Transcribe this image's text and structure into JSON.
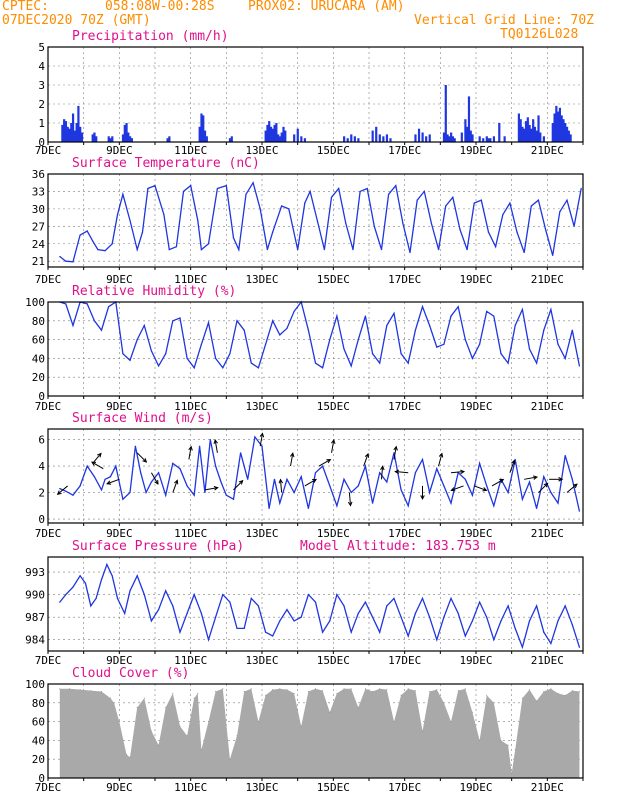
{
  "header": {
    "source": "CPTEC:",
    "coords": "058:08W-00:28S",
    "station": "PROX02: URUCARA (AM)",
    "run": "07DEC2020 70Z (GMT)",
    "grid_note": "Vertical Grid Line: 70Z",
    "code": "TQ0126L028"
  },
  "colors": {
    "header": "#ff8c00",
    "title": "#e0108c",
    "series": "#1f36e0",
    "cloud": "#a9a9a9",
    "grid": "#808080"
  },
  "x_axis": {
    "tick_labels": [
      "7DEC",
      "9DEC",
      "11DEC",
      "13DEC",
      "15DEC",
      "17DEC",
      "19DEC",
      "21DEC"
    ],
    "start_day": 7,
    "end_day": 22,
    "day_fraction_start": 0.333
  },
  "chart_data": [
    {
      "id": "precip",
      "type": "bar",
      "title": "Precipitation (mm/h)",
      "ylim": [
        0,
        5
      ],
      "yticks": [
        "0",
        "1",
        "2",
        "3",
        "4",
        "5"
      ],
      "ytick_values": [
        0,
        1,
        2,
        3,
        4,
        5
      ],
      "x": [
        7.4,
        7.45,
        7.5,
        7.55,
        7.6,
        7.65,
        7.7,
        7.75,
        7.8,
        7.85,
        7.9,
        7.95,
        8.25,
        8.3,
        8.35,
        8.7,
        8.75,
        8.8,
        9.1,
        9.15,
        9.2,
        9.25,
        9.3,
        9.35,
        10.35,
        10.4,
        11.25,
        11.3,
        11.35,
        11.4,
        11.45,
        12.1,
        12.15,
        13.1,
        13.15,
        13.2,
        13.25,
        13.3,
        13.35,
        13.4,
        13.45,
        13.5,
        13.55,
        13.6,
        13.65,
        13.9,
        14.0,
        14.1,
        14.2,
        15.3,
        15.4,
        15.5,
        15.6,
        15.7,
        16.1,
        16.2,
        16.3,
        16.4,
        16.5,
        16.6,
        17.3,
        17.4,
        17.5,
        17.6,
        17.7,
        18.1,
        18.15,
        18.2,
        18.25,
        18.3,
        18.35,
        18.4,
        18.6,
        18.7,
        18.75,
        18.8,
        18.85,
        18.9,
        19.1,
        19.2,
        19.3,
        19.35,
        19.4,
        19.5,
        19.65,
        19.8,
        20.2,
        20.25,
        20.3,
        20.35,
        20.4,
        20.45,
        20.5,
        20.55,
        20.6,
        20.65,
        20.7,
        20.75,
        20.8,
        20.9,
        21.15,
        21.2,
        21.25,
        21.3,
        21.35,
        21.4,
        21.45,
        21.5,
        21.55,
        21.6,
        21.65
      ],
      "values": [
        0.9,
        1.2,
        1.1,
        0.8,
        0.7,
        1.0,
        1.5,
        0.6,
        1.0,
        1.9,
        0.8,
        0.5,
        0.4,
        0.5,
        0.3,
        0.3,
        0.2,
        0.3,
        0.4,
        0.9,
        1.0,
        0.5,
        0.3,
        0.2,
        0.2,
        0.3,
        0.8,
        1.5,
        1.4,
        0.6,
        0.3,
        0.2,
        0.3,
        0.6,
        0.9,
        1.1,
        0.8,
        0.7,
        0.9,
        1.0,
        0.4,
        0.3,
        0.5,
        0.8,
        0.6,
        0.4,
        0.7,
        0.3,
        0.2,
        0.3,
        0.2,
        0.4,
        0.3,
        0.2,
        0.6,
        0.8,
        0.4,
        0.3,
        0.4,
        0.2,
        0.4,
        0.7,
        0.5,
        0.3,
        0.4,
        0.5,
        3.0,
        0.4,
        0.3,
        0.5,
        0.3,
        0.2,
        0.5,
        1.2,
        0.8,
        2.4,
        0.6,
        0.4,
        0.3,
        0.2,
        0.3,
        0.2,
        0.2,
        0.3,
        1.0,
        0.3,
        1.5,
        1.2,
        0.8,
        0.7,
        1.1,
        1.3,
        0.9,
        0.7,
        1.2,
        0.8,
        0.6,
        1.4,
        0.5,
        0.3,
        1.0,
        1.5,
        1.9,
        1.6,
        1.8,
        1.4,
        1.2,
        1.0,
        0.8,
        0.6,
        0.4
      ]
    },
    {
      "id": "temp",
      "type": "line",
      "title": "Surface Temperature (nC)",
      "ylim": [
        20,
        36
      ],
      "yticks": [
        "21",
        "24",
        "27",
        "30",
        "33",
        "36"
      ],
      "ytick_values": [
        21,
        24,
        27,
        30,
        33,
        36
      ],
      "x": [
        7.33,
        7.5,
        7.7,
        7.9,
        8.1,
        8.25,
        8.4,
        8.6,
        8.8,
        8.95,
        9.1,
        9.3,
        9.5,
        9.65,
        9.8,
        10.0,
        10.25,
        10.4,
        10.6,
        10.8,
        11.0,
        11.2,
        11.3,
        11.5,
        11.75,
        12.0,
        12.2,
        12.35,
        12.55,
        12.75,
        12.95,
        13.15,
        13.3,
        13.55,
        13.75,
        14.0,
        14.2,
        14.35,
        14.55,
        14.75,
        14.95,
        15.15,
        15.35,
        15.55,
        15.75,
        15.95,
        16.15,
        16.35,
        16.55,
        16.75,
        16.95,
        17.15,
        17.35,
        17.55,
        17.75,
        17.95,
        18.15,
        18.35,
        18.55,
        18.75,
        18.95,
        19.15,
        19.35,
        19.55,
        19.75,
        19.95,
        20.15,
        20.35,
        20.55,
        20.75,
        20.95,
        21.15,
        21.35,
        21.55,
        21.75,
        21.95
      ],
      "values": [
        21.8,
        21.0,
        20.9,
        25.5,
        26.2,
        24.5,
        23.0,
        22.8,
        24.0,
        29.0,
        32.5,
        28.0,
        23.0,
        26.0,
        33.5,
        34.0,
        29.0,
        23.0,
        23.5,
        33.0,
        34.0,
        28.0,
        23.0,
        24.0,
        33.5,
        34.0,
        25.0,
        23.0,
        32.5,
        34.5,
        30.0,
        23.0,
        26.0,
        30.5,
        30.0,
        23.0,
        31.0,
        33.0,
        28.0,
        23.0,
        32.0,
        33.5,
        27.5,
        23.0,
        33.0,
        33.5,
        27.0,
        23.0,
        32.5,
        34.0,
        27.5,
        22.5,
        31.5,
        33.0,
        27.5,
        23.0,
        30.5,
        32.0,
        26.5,
        23.0,
        31.0,
        31.5,
        26.0,
        23.5,
        29.0,
        31.0,
        26.0,
        22.5,
        30.5,
        31.5,
        26.5,
        22.0,
        29.5,
        31.5,
        27.0,
        33.5
      ]
    },
    {
      "id": "rh",
      "type": "line",
      "title": "Relative Humidity (%)",
      "ylim": [
        0,
        100
      ],
      "yticks": [
        "0",
        "20",
        "40",
        "60",
        "80",
        "100"
      ],
      "ytick_values": [
        0,
        20,
        40,
        60,
        80,
        100
      ],
      "x": [
        7.33,
        7.5,
        7.7,
        7.9,
        8.1,
        8.3,
        8.5,
        8.7,
        8.9,
        9.1,
        9.3,
        9.5,
        9.7,
        9.9,
        10.1,
        10.3,
        10.5,
        10.7,
        10.9,
        11.1,
        11.3,
        11.5,
        11.7,
        11.9,
        12.1,
        12.3,
        12.5,
        12.7,
        12.9,
        13.1,
        13.3,
        13.5,
        13.7,
        13.9,
        14.1,
        14.3,
        14.5,
        14.7,
        14.9,
        15.1,
        15.3,
        15.5,
        15.7,
        15.9,
        16.1,
        16.3,
        16.5,
        16.7,
        16.9,
        17.1,
        17.3,
        17.5,
        17.7,
        17.9,
        18.1,
        18.3,
        18.5,
        18.7,
        18.9,
        19.1,
        19.3,
        19.5,
        19.7,
        19.9,
        20.1,
        20.3,
        20.5,
        20.7,
        20.9,
        21.1,
        21.3,
        21.5,
        21.7,
        21.9
      ],
      "values": [
        100,
        98,
        75,
        100,
        98,
        80,
        70,
        95,
        100,
        45,
        38,
        60,
        75,
        48,
        32,
        45,
        80,
        83,
        40,
        30,
        55,
        78,
        40,
        30,
        45,
        80,
        70,
        35,
        30,
        55,
        80,
        65,
        72,
        90,
        100,
        70,
        35,
        30,
        60,
        85,
        50,
        32,
        60,
        85,
        45,
        35,
        75,
        88,
        45,
        35,
        70,
        95,
        75,
        52,
        55,
        85,
        95,
        60,
        40,
        55,
        90,
        85,
        45,
        35,
        75,
        92,
        50,
        35,
        70,
        92,
        55,
        40,
        70,
        32
      ]
    },
    {
      "id": "wind",
      "type": "line",
      "title": "Surface Wind (m/s)",
      "ylim": [
        -0.3,
        6.8
      ],
      "yticks": [
        "0",
        "2",
        "4",
        "6"
      ],
      "ytick_values": [
        0,
        2,
        4,
        6
      ],
      "x": [
        7.33,
        7.5,
        7.7,
        7.9,
        8.1,
        8.3,
        8.5,
        8.6,
        8.75,
        8.9,
        9.1,
        9.3,
        9.45,
        9.6,
        9.75,
        9.9,
        10.1,
        10.3,
        10.5,
        10.7,
        10.9,
        11.1,
        11.25,
        11.4,
        11.55,
        11.7,
        11.85,
        12.0,
        12.2,
        12.4,
        12.6,
        12.8,
        13.0,
        13.2,
        13.35,
        13.5,
        13.7,
        13.9,
        14.1,
        14.3,
        14.5,
        14.7,
        14.9,
        15.1,
        15.3,
        15.5,
        15.7,
        15.9,
        16.1,
        16.3,
        16.5,
        16.7,
        16.9,
        17.1,
        17.3,
        17.5,
        17.7,
        17.9,
        18.1,
        18.3,
        18.5,
        18.7,
        18.9,
        19.1,
        19.3,
        19.5,
        19.7,
        19.9,
        20.1,
        20.3,
        20.5,
        20.7,
        20.9,
        21.1,
        21.3,
        21.5,
        21.7,
        21.9
      ],
      "values": [
        2.3,
        2.1,
        1.8,
        2.5,
        4.0,
        3.2,
        2.2,
        3.0,
        3.2,
        4.0,
        1.5,
        2.0,
        5.5,
        3.5,
        2.0,
        2.8,
        3.5,
        1.8,
        4.2,
        3.8,
        2.5,
        1.8,
        5.5,
        2.0,
        6.0,
        4.0,
        2.8,
        1.8,
        1.5,
        5.0,
        3.0,
        6.2,
        5.5,
        0.8,
        3.0,
        1.2,
        3.0,
        2.0,
        3.2,
        0.8,
        3.5,
        4.0,
        2.5,
        1.0,
        3.0,
        2.0,
        2.5,
        4.0,
        1.2,
        3.5,
        2.8,
        5.0,
        2.2,
        1.0,
        3.5,
        4.5,
        2.0,
        3.8,
        2.5,
        1.2,
        3.5,
        3.0,
        1.8,
        4.2,
        2.5,
        1.0,
        3.0,
        2.0,
        4.5,
        1.5,
        2.8,
        0.8,
        3.2,
        2.0,
        1.2,
        4.8,
        3.0,
        0.6
      ],
      "arrows": [
        {
          "x": 7.55,
          "y": 2.5,
          "dir": 220
        },
        {
          "x": 8.25,
          "y": 4.2,
          "dir": 50
        },
        {
          "x": 8.55,
          "y": 3.8,
          "dir": 150
        },
        {
          "x": 9.0,
          "y": 3.0,
          "dir": 200
        },
        {
          "x": 9.5,
          "y": 5.0,
          "dir": 315
        },
        {
          "x": 9.9,
          "y": 3.5,
          "dir": 300
        },
        {
          "x": 10.5,
          "y": 2.0,
          "dir": 70
        },
        {
          "x": 10.95,
          "y": 4.5,
          "dir": 80
        },
        {
          "x": 11.4,
          "y": 2.2,
          "dir": 10
        },
        {
          "x": 11.75,
          "y": 5.0,
          "dir": 100
        },
        {
          "x": 12.2,
          "y": 2.2,
          "dir": 45
        },
        {
          "x": 12.95,
          "y": 5.5,
          "dir": 80
        },
        {
          "x": 13.55,
          "y": 2.0,
          "dir": 95
        },
        {
          "x": 13.8,
          "y": 4.0,
          "dir": 80
        },
        {
          "x": 14.2,
          "y": 2.5,
          "dir": 30
        },
        {
          "x": 14.6,
          "y": 4.0,
          "dir": 30
        },
        {
          "x": 14.95,
          "y": 5.0,
          "dir": 80
        },
        {
          "x": 15.45,
          "y": 2.0,
          "dir": 275
        },
        {
          "x": 15.85,
          "y": 4.0,
          "dir": 70
        },
        {
          "x": 16.35,
          "y": 3.0,
          "dir": 85
        },
        {
          "x": 16.7,
          "y": 4.5,
          "dir": 80
        },
        {
          "x": 17.1,
          "y": 3.5,
          "dir": 175
        },
        {
          "x": 17.5,
          "y": 2.5,
          "dir": 270
        },
        {
          "x": 17.95,
          "y": 4.0,
          "dir": 75
        },
        {
          "x": 18.3,
          "y": 3.5,
          "dir": 5
        },
        {
          "x": 18.65,
          "y": 2.5,
          "dir": 200
        },
        {
          "x": 18.95,
          "y": 2.5,
          "dir": 340
        },
        {
          "x": 19.45,
          "y": 2.5,
          "dir": 30
        },
        {
          "x": 19.95,
          "y": 3.5,
          "dir": 70
        },
        {
          "x": 20.35,
          "y": 3.0,
          "dir": 10
        },
        {
          "x": 20.75,
          "y": 2.0,
          "dir": 45
        },
        {
          "x": 21.05,
          "y": 3.0,
          "dir": 0
        },
        {
          "x": 21.55,
          "y": 2.0,
          "dir": 40
        }
      ]
    },
    {
      "id": "pressure",
      "type": "line",
      "title": "Surface Pressure (hPa)",
      "subtitle": "Model Altitude: 183.753 m",
      "ylim": [
        982.5,
        995
      ],
      "yticks": [
        "984",
        "987",
        "990",
        "993"
      ],
      "ytick_values": [
        984,
        987,
        990,
        993
      ],
      "x": [
        7.33,
        7.5,
        7.7,
        7.9,
        8.05,
        8.2,
        8.35,
        8.5,
        8.65,
        8.8,
        8.95,
        9.15,
        9.3,
        9.5,
        9.7,
        9.9,
        10.1,
        10.3,
        10.5,
        10.7,
        10.9,
        11.1,
        11.3,
        11.5,
        11.7,
        11.9,
        12.1,
        12.3,
        12.5,
        12.7,
        12.9,
        13.1,
        13.3,
        13.5,
        13.7,
        13.9,
        14.1,
        14.3,
        14.5,
        14.7,
        14.9,
        15.1,
        15.3,
        15.5,
        15.7,
        15.9,
        16.1,
        16.3,
        16.5,
        16.7,
        16.9,
        17.1,
        17.3,
        17.5,
        17.7,
        17.9,
        18.1,
        18.3,
        18.5,
        18.7,
        18.9,
        19.1,
        19.3,
        19.5,
        19.7,
        19.9,
        20.1,
        20.3,
        20.5,
        20.7,
        20.9,
        21.1,
        21.3,
        21.5,
        21.7,
        21.9
      ],
      "values": [
        989.0,
        990.0,
        991.0,
        992.5,
        991.5,
        988.5,
        989.5,
        992.0,
        994.0,
        992.5,
        989.5,
        987.5,
        990.5,
        992.5,
        990.0,
        986.5,
        988.0,
        990.5,
        988.5,
        985.0,
        987.5,
        990.0,
        987.5,
        984.0,
        987.0,
        990.0,
        989.0,
        985.5,
        985.5,
        989.5,
        988.5,
        985.0,
        984.5,
        986.5,
        988.0,
        986.5,
        987.0,
        990.0,
        989.0,
        985.0,
        986.5,
        990.0,
        988.5,
        985.0,
        987.5,
        989.0,
        987.0,
        985.0,
        988.5,
        989.5,
        987.0,
        984.5,
        987.5,
        989.5,
        987.0,
        984.0,
        987.0,
        989.5,
        987.5,
        984.5,
        986.5,
        989.0,
        987.0,
        984.0,
        986.5,
        988.5,
        985.5,
        983.0,
        986.5,
        988.5,
        985.0,
        983.5,
        986.5,
        988.5,
        986.0,
        983.0
      ]
    },
    {
      "id": "cloud",
      "type": "area",
      "title": "Cloud Cover (%)",
      "ylim": [
        0,
        100
      ],
      "yticks": [
        "0",
        "20",
        "40",
        "60",
        "80",
        "100"
      ],
      "ytick_values": [
        0,
        20,
        40,
        60,
        80,
        100
      ],
      "x": [
        7.33,
        7.6,
        7.9,
        8.2,
        8.5,
        8.75,
        8.85,
        9.0,
        9.2,
        9.3,
        9.5,
        9.7,
        9.9,
        10.1,
        10.3,
        10.5,
        10.7,
        10.9,
        11.1,
        11.2,
        11.3,
        11.5,
        11.7,
        11.9,
        12.1,
        12.3,
        12.5,
        12.7,
        12.9,
        13.1,
        13.3,
        13.5,
        13.7,
        13.9,
        14.1,
        14.3,
        14.5,
        14.7,
        14.9,
        15.1,
        15.3,
        15.5,
        15.7,
        15.9,
        16.1,
        16.3,
        16.5,
        16.7,
        16.9,
        17.1,
        17.3,
        17.5,
        17.7,
        17.9,
        18.1,
        18.3,
        18.5,
        18.7,
        18.9,
        19.1,
        19.3,
        19.5,
        19.7,
        19.9,
        20.0,
        20.1,
        20.3,
        20.5,
        20.7,
        20.9,
        21.1,
        21.3,
        21.5,
        21.7,
        21.9
      ],
      "values": [
        95,
        95,
        94,
        93,
        92,
        85,
        80,
        60,
        25,
        22,
        75,
        85,
        50,
        35,
        75,
        90,
        55,
        45,
        85,
        90,
        30,
        60,
        92,
        95,
        20,
        45,
        92,
        95,
        60,
        88,
        94,
        95,
        94,
        90,
        55,
        92,
        95,
        93,
        70,
        90,
        95,
        95,
        75,
        95,
        92,
        95,
        94,
        60,
        88,
        95,
        93,
        50,
        92,
        94,
        80,
        60,
        93,
        95,
        70,
        40,
        88,
        80,
        40,
        35,
        5,
        30,
        85,
        94,
        82,
        92,
        95,
        90,
        88,
        93,
        92
      ]
    }
  ]
}
